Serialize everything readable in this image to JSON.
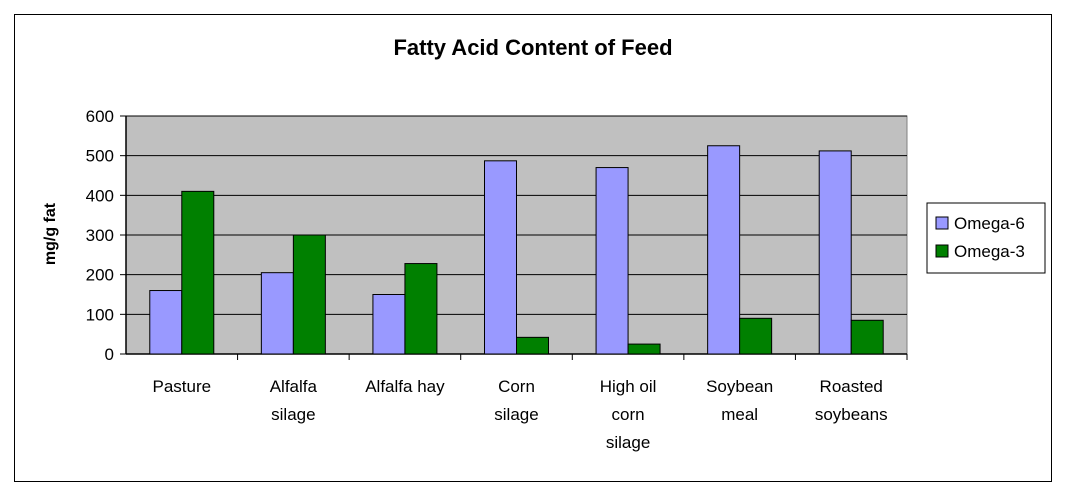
{
  "chart_data": {
    "type": "bar",
    "title": "Fatty Acid Content of Feed",
    "xlabel": "",
    "ylabel": "mg/g fat",
    "ylim": [
      0,
      600
    ],
    "yticks": [
      0,
      100,
      200,
      300,
      400,
      500,
      600
    ],
    "grid": true,
    "legend_position": "right",
    "categories": [
      [
        "Pasture"
      ],
      [
        "Alfalfa",
        "silage"
      ],
      [
        "Alfalfa hay"
      ],
      [
        "Corn",
        "silage"
      ],
      [
        "High oil",
        "corn",
        "silage"
      ],
      [
        "Soybean",
        "meal"
      ],
      [
        "Roasted",
        "soybeans"
      ]
    ],
    "series": [
      {
        "name": "Omega-6",
        "color": "#9999ff",
        "values": [
          160,
          205,
          150,
          487,
          470,
          525,
          512
        ]
      },
      {
        "name": "Omega-3",
        "color": "#008000",
        "values": [
          410,
          300,
          228,
          42,
          25,
          90,
          85
        ]
      }
    ],
    "plot_background": "#c0c0c0"
  }
}
